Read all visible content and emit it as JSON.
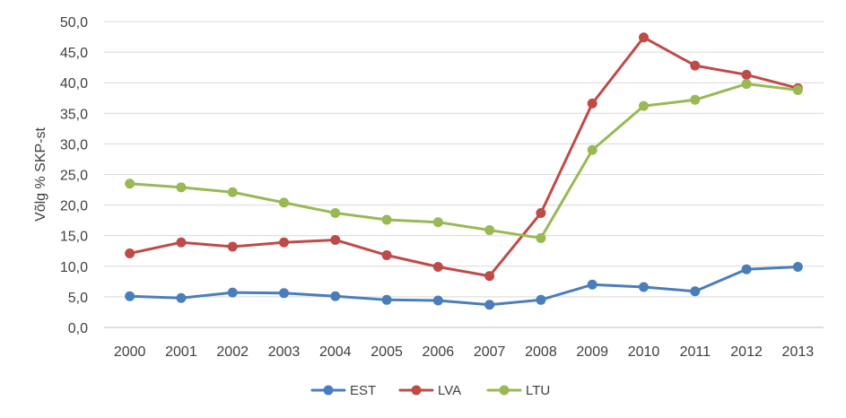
{
  "chart_data": {
    "type": "line",
    "ylabel": "Võlg % SKP-st",
    "xlabel": "",
    "categories": [
      "2000",
      "2001",
      "2002",
      "2003",
      "2004",
      "2005",
      "2006",
      "2007",
      "2008",
      "2009",
      "2010",
      "2011",
      "2012",
      "2013"
    ],
    "ylim": [
      0,
      50
    ],
    "yticks": [
      "0,0",
      "5,0",
      "10,0",
      "15,0",
      "20,0",
      "25,0",
      "30,0",
      "35,0",
      "40,0",
      "45,0",
      "50,0"
    ],
    "grid": true,
    "legend_position": "bottom",
    "series": [
      {
        "name": "EST",
        "color": "#4a7ebb",
        "values": [
          5.1,
          4.8,
          5.7,
          5.6,
          5.1,
          4.5,
          4.4,
          3.7,
          4.5,
          7.0,
          6.6,
          5.9,
          9.5,
          9.9
        ]
      },
      {
        "name": "LVA",
        "color": "#be4b48",
        "values": [
          12.1,
          13.9,
          13.2,
          13.9,
          14.3,
          11.8,
          9.9,
          8.4,
          18.7,
          36.6,
          47.4,
          42.8,
          41.3,
          39.1
        ]
      },
      {
        "name": "LTU",
        "color": "#98b954",
        "values": [
          23.5,
          22.9,
          22.1,
          20.4,
          18.7,
          17.6,
          17.2,
          15.9,
          14.6,
          29.0,
          36.2,
          37.2,
          39.8,
          38.8
        ]
      }
    ]
  }
}
